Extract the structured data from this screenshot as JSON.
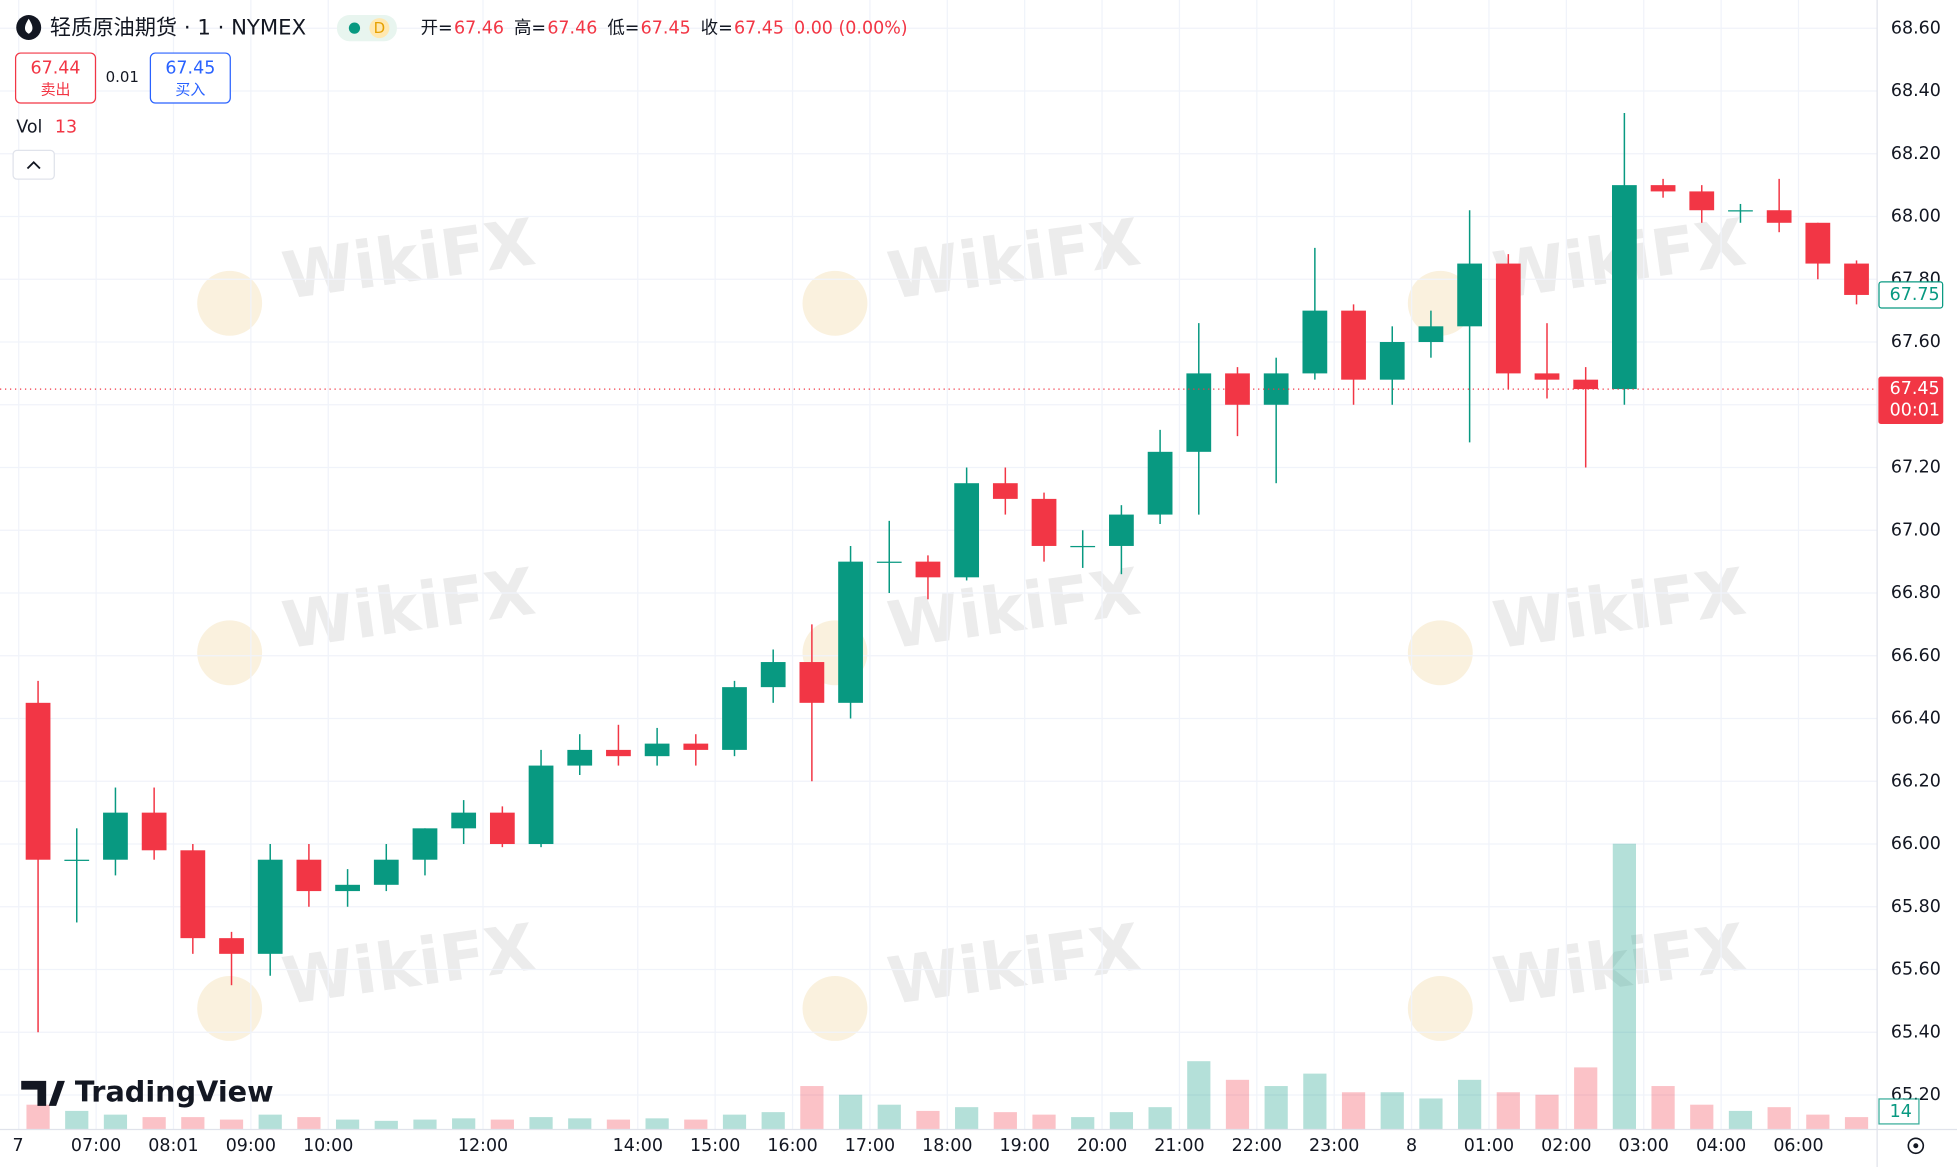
{
  "header": {
    "symbol": "轻质原油期货 · 1 · NYMEX",
    "badge": "D",
    "ohlc": [
      {
        "key": "开=",
        "value": "67.46"
      },
      {
        "key": "高=",
        "value": "67.46"
      },
      {
        "key": "低=",
        "value": "67.45"
      },
      {
        "key": "收=",
        "value": "67.45"
      }
    ],
    "change": "0.00 (0.00%)",
    "sell": {
      "price": "67.44",
      "label": "卖出"
    },
    "spread": "0.01",
    "buy": {
      "price": "67.45",
      "label": "买入"
    },
    "vol_label": "Vol",
    "vol_value": "13"
  },
  "logo": "TradingView",
  "watermark": "WikiFX",
  "chart_data": {
    "type": "candlestick",
    "categories": [
      "7",
      null,
      "07:00",
      null,
      "08:01",
      null,
      "09:00",
      null,
      "10:00",
      null,
      null,
      null,
      "12:00",
      null,
      null,
      null,
      "14:00",
      null,
      "15:00",
      null,
      "16:00",
      null,
      "17:00",
      null,
      "18:00",
      null,
      "19:00",
      null,
      "20:00",
      null,
      "21:00",
      null,
      "22:00",
      null,
      "23:00",
      null,
      "8",
      null,
      "01:00",
      null,
      "02:00",
      null,
      "03:00",
      null,
      "04:00",
      null,
      "06:00",
      null
    ],
    "open": [
      66.45,
      65.95,
      65.95,
      66.1,
      65.98,
      65.7,
      65.65,
      65.95,
      65.85,
      65.87,
      65.95,
      66.05,
      66.1,
      66.0,
      66.25,
      66.3,
      66.28,
      66.32,
      66.3,
      66.5,
      66.58,
      66.45,
      66.9,
      66.9,
      66.85,
      67.15,
      67.1,
      66.95,
      66.95,
      67.05,
      67.25,
      67.5,
      67.4,
      67.5,
      67.7,
      67.48,
      67.6,
      67.65,
      67.85,
      67.5,
      67.48,
      67.45,
      68.1,
      68.08,
      68.02,
      68.02,
      67.98,
      67.85
    ],
    "high": [
      66.52,
      66.05,
      66.18,
      66.18,
      66.0,
      65.72,
      66.0,
      66.0,
      65.92,
      66.0,
      66.05,
      66.14,
      66.12,
      66.3,
      66.35,
      66.38,
      66.37,
      66.35,
      66.52,
      66.62,
      66.7,
      66.95,
      67.03,
      66.92,
      67.2,
      67.2,
      67.12,
      67.0,
      67.08,
      67.32,
      67.66,
      67.52,
      67.55,
      67.9,
      67.72,
      67.65,
      67.7,
      68.02,
      67.88,
      67.66,
      67.52,
      68.33,
      68.12,
      68.1,
      68.04,
      68.12,
      67.98,
      67.86
    ],
    "low": [
      65.4,
      65.75,
      65.9,
      65.95,
      65.65,
      65.55,
      65.58,
      65.8,
      65.8,
      65.85,
      65.9,
      66.0,
      65.99,
      65.99,
      66.22,
      66.25,
      66.25,
      66.25,
      66.28,
      66.45,
      66.2,
      66.4,
      66.8,
      66.78,
      66.84,
      67.05,
      66.9,
      66.88,
      66.86,
      67.02,
      67.05,
      67.3,
      67.15,
      67.48,
      67.4,
      67.4,
      67.55,
      67.28,
      67.45,
      67.42,
      67.2,
      67.4,
      68.06,
      67.98,
      67.98,
      67.95,
      67.8,
      67.72
    ],
    "close": [
      65.95,
      65.95,
      66.1,
      65.98,
      65.7,
      65.65,
      65.95,
      65.85,
      65.87,
      65.95,
      66.05,
      66.1,
      66.0,
      66.25,
      66.3,
      66.28,
      66.32,
      66.3,
      66.5,
      66.58,
      66.45,
      66.9,
      66.9,
      66.85,
      67.15,
      67.1,
      66.95,
      66.95,
      67.05,
      67.25,
      67.5,
      67.4,
      67.5,
      67.7,
      67.48,
      67.6,
      67.65,
      67.85,
      67.5,
      67.48,
      67.45,
      68.1,
      68.08,
      68.02,
      68.02,
      67.98,
      67.85,
      67.75
    ],
    "volume": [
      20,
      15,
      12,
      10,
      10,
      8,
      12,
      10,
      8,
      7,
      8,
      9,
      8,
      10,
      9,
      8,
      9,
      8,
      12,
      14,
      35,
      28,
      20,
      15,
      18,
      14,
      12,
      10,
      14,
      18,
      55,
      40,
      35,
      45,
      30,
      30,
      25,
      40,
      30,
      28,
      50,
      230,
      35,
      20,
      15,
      18,
      12,
      10
    ],
    "volume_label": 14,
    "up_color": "#089981",
    "down_color": "#f23645",
    "ylim": [
      65.09,
      68.69
    ],
    "yticks": [
      {
        "value": 65.2,
        "label": "65.20"
      },
      {
        "value": 65.4,
        "label": "65.40"
      },
      {
        "value": 65.6,
        "label": "65.60"
      },
      {
        "value": 65.8,
        "label": "65.80"
      },
      {
        "value": 66,
        "label": "66.00"
      },
      {
        "value": 66.2,
        "label": "66.20"
      },
      {
        "value": 66.4,
        "label": "66.40"
      },
      {
        "value": 66.6,
        "label": "66.60"
      },
      {
        "value": 66.8,
        "label": "66.80"
      },
      {
        "value": 67,
        "label": "67.00"
      },
      {
        "value": 67.2,
        "label": "67.20"
      },
      {
        "value": 67.4,
        "label": "67.40"
      },
      {
        "value": 67.6,
        "label": "67.60"
      },
      {
        "value": 67.8,
        "label": "67.80"
      },
      {
        "value": 68,
        "label": "68.00"
      },
      {
        "value": 68.2,
        "label": "68.20"
      },
      {
        "value": 68.4,
        "label": "68.40"
      },
      {
        "value": 68.6,
        "label": "68.60"
      }
    ],
    "grid": true,
    "marker_price": 67.75,
    "last_price": 67.45,
    "countdown": "00:01"
  }
}
